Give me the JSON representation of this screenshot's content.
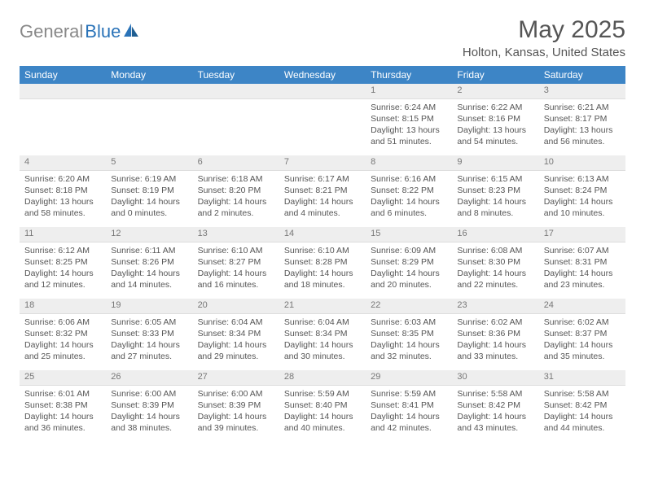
{
  "logo": {
    "gray": "General",
    "blue": "Blue"
  },
  "title": "May 2025",
  "location": "Holton, Kansas, United States",
  "colors": {
    "header_bg": "#3d85c6",
    "header_fg": "#ffffff",
    "daynum_bg": "#eeeeee",
    "daynum_fg": "#777777",
    "text": "#555555",
    "logo_gray": "#888888",
    "logo_blue": "#2a73b8"
  },
  "weekdays": [
    "Sunday",
    "Monday",
    "Tuesday",
    "Wednesday",
    "Thursday",
    "Friday",
    "Saturday"
  ],
  "weeks": [
    [
      null,
      null,
      null,
      null,
      {
        "n": "1",
        "sr": "6:24 AM",
        "ss": "8:15 PM",
        "dl": "13 hours and 51 minutes."
      },
      {
        "n": "2",
        "sr": "6:22 AM",
        "ss": "8:16 PM",
        "dl": "13 hours and 54 minutes."
      },
      {
        "n": "3",
        "sr": "6:21 AM",
        "ss": "8:17 PM",
        "dl": "13 hours and 56 minutes."
      }
    ],
    [
      {
        "n": "4",
        "sr": "6:20 AM",
        "ss": "8:18 PM",
        "dl": "13 hours and 58 minutes."
      },
      {
        "n": "5",
        "sr": "6:19 AM",
        "ss": "8:19 PM",
        "dl": "14 hours and 0 minutes."
      },
      {
        "n": "6",
        "sr": "6:18 AM",
        "ss": "8:20 PM",
        "dl": "14 hours and 2 minutes."
      },
      {
        "n": "7",
        "sr": "6:17 AM",
        "ss": "8:21 PM",
        "dl": "14 hours and 4 minutes."
      },
      {
        "n": "8",
        "sr": "6:16 AM",
        "ss": "8:22 PM",
        "dl": "14 hours and 6 minutes."
      },
      {
        "n": "9",
        "sr": "6:15 AM",
        "ss": "8:23 PM",
        "dl": "14 hours and 8 minutes."
      },
      {
        "n": "10",
        "sr": "6:13 AM",
        "ss": "8:24 PM",
        "dl": "14 hours and 10 minutes."
      }
    ],
    [
      {
        "n": "11",
        "sr": "6:12 AM",
        "ss": "8:25 PM",
        "dl": "14 hours and 12 minutes."
      },
      {
        "n": "12",
        "sr": "6:11 AM",
        "ss": "8:26 PM",
        "dl": "14 hours and 14 minutes."
      },
      {
        "n": "13",
        "sr": "6:10 AM",
        "ss": "8:27 PM",
        "dl": "14 hours and 16 minutes."
      },
      {
        "n": "14",
        "sr": "6:10 AM",
        "ss": "8:28 PM",
        "dl": "14 hours and 18 minutes."
      },
      {
        "n": "15",
        "sr": "6:09 AM",
        "ss": "8:29 PM",
        "dl": "14 hours and 20 minutes."
      },
      {
        "n": "16",
        "sr": "6:08 AM",
        "ss": "8:30 PM",
        "dl": "14 hours and 22 minutes."
      },
      {
        "n": "17",
        "sr": "6:07 AM",
        "ss": "8:31 PM",
        "dl": "14 hours and 23 minutes."
      }
    ],
    [
      {
        "n": "18",
        "sr": "6:06 AM",
        "ss": "8:32 PM",
        "dl": "14 hours and 25 minutes."
      },
      {
        "n": "19",
        "sr": "6:05 AM",
        "ss": "8:33 PM",
        "dl": "14 hours and 27 minutes."
      },
      {
        "n": "20",
        "sr": "6:04 AM",
        "ss": "8:34 PM",
        "dl": "14 hours and 29 minutes."
      },
      {
        "n": "21",
        "sr": "6:04 AM",
        "ss": "8:34 PM",
        "dl": "14 hours and 30 minutes."
      },
      {
        "n": "22",
        "sr": "6:03 AM",
        "ss": "8:35 PM",
        "dl": "14 hours and 32 minutes."
      },
      {
        "n": "23",
        "sr": "6:02 AM",
        "ss": "8:36 PM",
        "dl": "14 hours and 33 minutes."
      },
      {
        "n": "24",
        "sr": "6:02 AM",
        "ss": "8:37 PM",
        "dl": "14 hours and 35 minutes."
      }
    ],
    [
      {
        "n": "25",
        "sr": "6:01 AM",
        "ss": "8:38 PM",
        "dl": "14 hours and 36 minutes."
      },
      {
        "n": "26",
        "sr": "6:00 AM",
        "ss": "8:39 PM",
        "dl": "14 hours and 38 minutes."
      },
      {
        "n": "27",
        "sr": "6:00 AM",
        "ss": "8:39 PM",
        "dl": "14 hours and 39 minutes."
      },
      {
        "n": "28",
        "sr": "5:59 AM",
        "ss": "8:40 PM",
        "dl": "14 hours and 40 minutes."
      },
      {
        "n": "29",
        "sr": "5:59 AM",
        "ss": "8:41 PM",
        "dl": "14 hours and 42 minutes."
      },
      {
        "n": "30",
        "sr": "5:58 AM",
        "ss": "8:42 PM",
        "dl": "14 hours and 43 minutes."
      },
      {
        "n": "31",
        "sr": "5:58 AM",
        "ss": "8:42 PM",
        "dl": "14 hours and 44 minutes."
      }
    ]
  ],
  "labels": {
    "sunrise": "Sunrise: ",
    "sunset": "Sunset: ",
    "daylight": "Daylight: "
  }
}
